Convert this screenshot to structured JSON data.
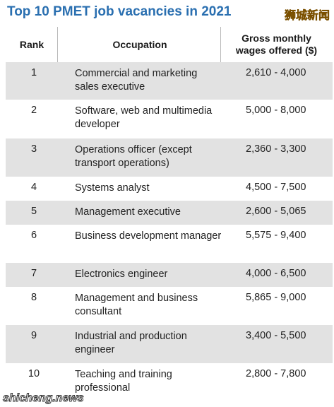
{
  "title": "Top 10 PMET job vacancies in 2021",
  "watermark_top": "狮城新闻",
  "watermark_bottom": "shicheng.news",
  "headers": {
    "rank": "Rank",
    "occupation": "Occupation",
    "wages_line1": "Gross monthly",
    "wages_line2": "wages offered ($)"
  },
  "rows": [
    {
      "rank": "1",
      "occupation": "Commercial and marketing sales executive",
      "wages": "2,610 - 4,000"
    },
    {
      "rank": "2",
      "occupation": "Software, web and multimedia developer",
      "wages": "5,000 - 8,000"
    },
    {
      "rank": "3",
      "occupation": "Operations officer (except transport operations)",
      "wages": "2,360 - 3,300"
    },
    {
      "rank": "4",
      "occupation": "Systems analyst",
      "wages": "4,500 - 7,500"
    },
    {
      "rank": "5",
      "occupation": "Management executive",
      "wages": "2,600 - 5,065"
    },
    {
      "rank": "6",
      "occupation": "Business development manager",
      "wages": "5,575 - 9,400"
    },
    {
      "rank": "7",
      "occupation": "Electronics engineer",
      "wages": "4,000 - 6,500"
    },
    {
      "rank": "8",
      "occupation": "Management and business consultant",
      "wages": "5,865 - 9,000"
    },
    {
      "rank": "9",
      "occupation": "Industrial and production engineer",
      "wages": "3,400 - 5,500"
    },
    {
      "rank": "10",
      "occupation": "Teaching and training professional",
      "wages": "2,800 - 7,800"
    }
  ]
}
